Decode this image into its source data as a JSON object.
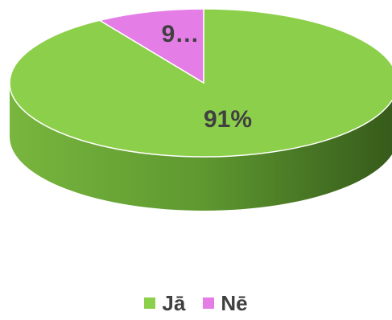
{
  "chart_data": {
    "type": "pie",
    "categories": [
      "Jā",
      "Nē"
    ],
    "values": [
      91,
      9
    ],
    "data_labels": [
      "91%",
      "9…"
    ],
    "colors": [
      "#8ccf4a",
      "#e47ee6"
    ],
    "legend_position": "bottom",
    "style": "3d"
  }
}
